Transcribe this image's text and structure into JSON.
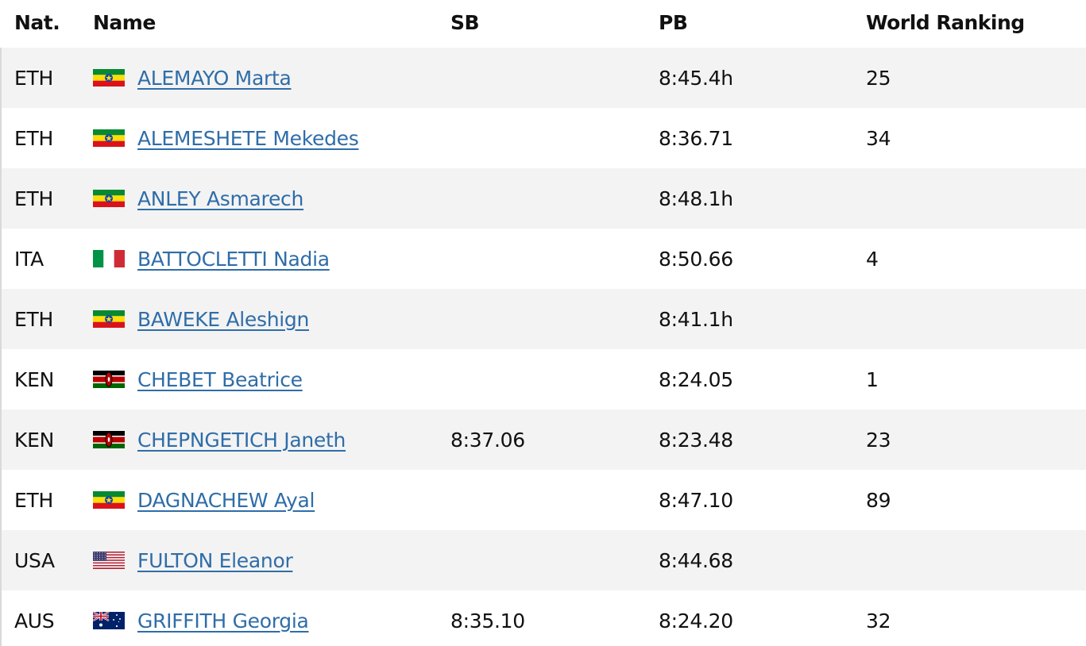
{
  "table": {
    "headers": {
      "nat": "Nat.",
      "name": "Name",
      "sb": "SB",
      "pb": "PB",
      "wr": "World Ranking"
    },
    "rows": [
      {
        "nat": "ETH",
        "flag": "ethiopia-flag-icon",
        "name": "ALEMAYO Marta",
        "sb": "",
        "pb": "8:45.4h",
        "wr": "25"
      },
      {
        "nat": "ETH",
        "flag": "ethiopia-flag-icon",
        "name": "ALEMESHETE Mekedes",
        "sb": "",
        "pb": "8:36.71",
        "wr": "34"
      },
      {
        "nat": "ETH",
        "flag": "ethiopia-flag-icon",
        "name": "ANLEY Asmarech",
        "sb": "",
        "pb": "8:48.1h",
        "wr": ""
      },
      {
        "nat": "ITA",
        "flag": "italy-flag-icon",
        "name": "BATTOCLETTI Nadia",
        "sb": "",
        "pb": "8:50.66",
        "wr": "4"
      },
      {
        "nat": "ETH",
        "flag": "ethiopia-flag-icon",
        "name": "BAWEKE Aleshign",
        "sb": "",
        "pb": "8:41.1h",
        "wr": ""
      },
      {
        "nat": "KEN",
        "flag": "kenya-flag-icon",
        "name": "CHEBET Beatrice",
        "sb": "",
        "pb": "8:24.05",
        "wr": "1"
      },
      {
        "nat": "KEN",
        "flag": "kenya-flag-icon",
        "name": "CHEPNGETICH Janeth",
        "sb": "8:37.06",
        "pb": "8:23.48",
        "wr": "23"
      },
      {
        "nat": "ETH",
        "flag": "ethiopia-flag-icon",
        "name": "DAGNACHEW Ayal",
        "sb": "",
        "pb": "8:47.10",
        "wr": "89"
      },
      {
        "nat": "USA",
        "flag": "usa-flag-icon",
        "name": "FULTON Eleanor",
        "sb": "",
        "pb": "8:44.68",
        "wr": ""
      },
      {
        "nat": "AUS",
        "flag": "australia-flag-icon",
        "name": "GRIFFITH Georgia",
        "sb": "8:35.10",
        "pb": "8:24.20",
        "wr": "32"
      }
    ]
  },
  "colors": {
    "link": "#2f6da8",
    "row_alt": "#f3f3f3",
    "text": "#111111"
  }
}
